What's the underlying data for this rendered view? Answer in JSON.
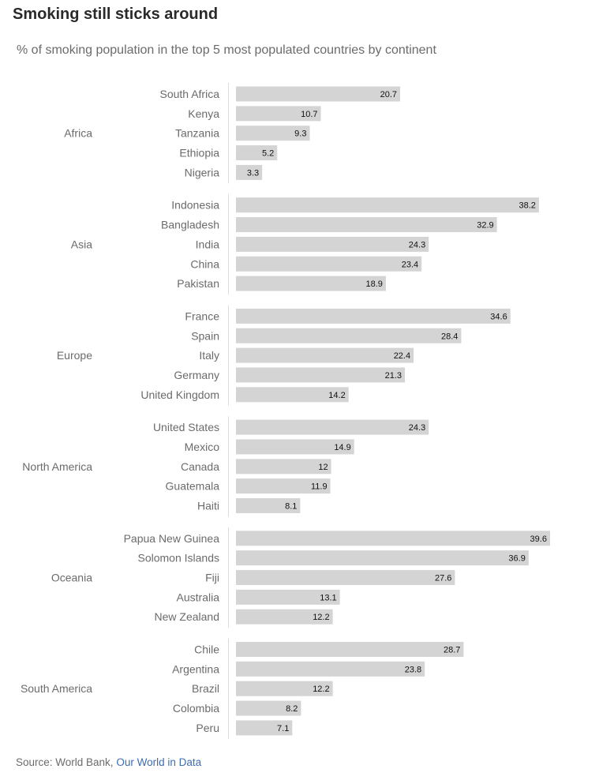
{
  "chart_data": {
    "type": "bar",
    "orientation": "horizontal",
    "title": "Smoking still sticks around",
    "subtitle": "% of smoking population in the top 5 most populated countries by continent",
    "xlim": [
      0,
      40
    ],
    "grid": false,
    "data_labels": true,
    "bar_color": "#d4d4d4",
    "groups": [
      {
        "name": "Africa",
        "categories": [
          "South Africa",
          "Kenya",
          "Tanzania",
          "Ethiopia",
          "Nigeria"
        ],
        "values": [
          20.7,
          10.7,
          9.3,
          5.2,
          3.3
        ]
      },
      {
        "name": "Asia",
        "categories": [
          "Indonesia",
          "Bangladesh",
          "India",
          "China",
          "Pakistan"
        ],
        "values": [
          38.2,
          32.9,
          24.3,
          23.4,
          18.9
        ]
      },
      {
        "name": "Europe",
        "categories": [
          "France",
          "Spain",
          "Italy",
          "Germany",
          "United Kingdom"
        ],
        "values": [
          34.6,
          28.4,
          22.4,
          21.3,
          14.2
        ]
      },
      {
        "name": "North America",
        "categories": [
          "United States",
          "Mexico",
          "Canada",
          "Guatemala",
          "Haiti"
        ],
        "values": [
          24.3,
          14.9,
          12,
          11.9,
          8.1
        ]
      },
      {
        "name": "Oceania",
        "categories": [
          "Papua New Guinea",
          "Solomon Islands",
          "Fiji",
          "Australia",
          "New Zealand"
        ],
        "values": [
          39.6,
          36.9,
          27.6,
          13.1,
          12.2
        ]
      },
      {
        "name": "South America",
        "categories": [
          "Chile",
          "Argentina",
          "Brazil",
          "Colombia",
          "Peru"
        ],
        "values": [
          28.7,
          23.8,
          12.2,
          8.2,
          7.1
        ]
      }
    ]
  },
  "source": {
    "label": "Source: World Bank,",
    "link_text": "Our World in Data",
    "link_color": "#3c6db0"
  }
}
